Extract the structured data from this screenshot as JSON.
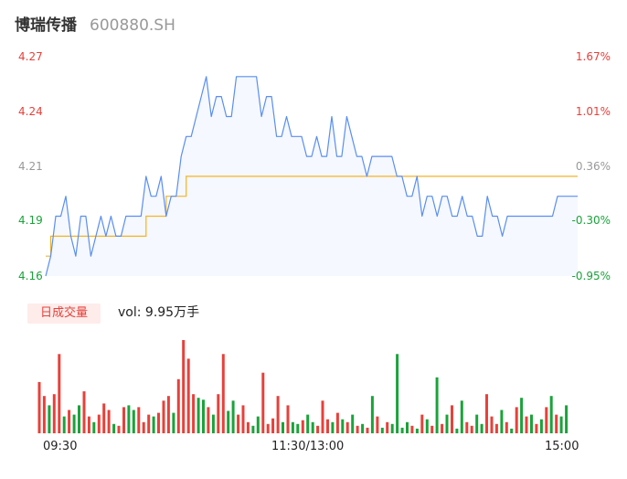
{
  "header": {
    "name": "博瑞传播",
    "code": "600880.SH"
  },
  "colors": {
    "price_line": "#5a8ef2",
    "avg_line": "#f5b325",
    "up": "#e8403a",
    "down": "#1aa33a",
    "neutral": "#999999",
    "area_fill": "#f5f8ff"
  },
  "volume_label": {
    "badge": "日成交量",
    "text": "vol: 9.95万手"
  },
  "chart_data": [
    {
      "type": "line",
      "title": "",
      "ylim": [
        4.16,
        4.27
      ],
      "y_ticks": [
        "4.27",
        "4.24",
        "4.21",
        "4.19",
        "4.16"
      ],
      "y2_ticks": [
        "1.67%",
        "1.01%",
        "0.36%",
        "-0.30%",
        "-0.95%"
      ],
      "x_ticks": [
        "09:30",
        "11:30/13:00",
        "15:00"
      ],
      "series": [
        {
          "key": "price",
          "values": [
            4.16,
            4.17,
            4.19,
            4.19,
            4.2,
            4.18,
            4.17,
            4.19,
            4.19,
            4.17,
            4.18,
            4.19,
            4.18,
            4.19,
            4.18,
            4.18,
            4.19,
            4.19,
            4.19,
            4.19,
            4.21,
            4.2,
            4.2,
            4.21,
            4.19,
            4.2,
            4.2,
            4.22,
            4.23,
            4.23,
            4.24,
            4.25,
            4.26,
            4.24,
            4.25,
            4.25,
            4.24,
            4.24,
            4.26,
            4.26,
            4.26,
            4.26,
            4.26,
            4.24,
            4.25,
            4.25,
            4.23,
            4.23,
            4.24,
            4.23,
            4.23,
            4.23,
            4.22,
            4.22,
            4.23,
            4.22,
            4.22,
            4.24,
            4.22,
            4.22,
            4.24,
            4.23,
            4.22,
            4.22,
            4.21,
            4.22,
            4.22,
            4.22,
            4.22,
            4.22,
            4.21,
            4.21,
            4.2,
            4.2,
            4.21,
            4.19,
            4.2,
            4.2,
            4.19,
            4.2,
            4.2,
            4.19,
            4.19,
            4.2,
            4.19,
            4.19,
            4.18,
            4.18,
            4.2,
            4.19,
            4.19,
            4.18,
            4.19,
            4.19,
            4.19,
            4.19,
            4.19,
            4.19,
            4.19,
            4.19,
            4.19,
            4.19,
            4.2,
            4.2,
            4.2,
            4.2,
            4.2
          ]
        },
        {
          "key": "average",
          "values": [
            4.17,
            4.18,
            4.18,
            4.18,
            4.18,
            4.18,
            4.18,
            4.18,
            4.18,
            4.18,
            4.18,
            4.18,
            4.18,
            4.18,
            4.18,
            4.18,
            4.18,
            4.18,
            4.18,
            4.18,
            4.19,
            4.19,
            4.19,
            4.19,
            4.2,
            4.2,
            4.2,
            4.2,
            4.21,
            4.21,
            4.21,
            4.21,
            4.21,
            4.21,
            4.21,
            4.21,
            4.21,
            4.21,
            4.21,
            4.21,
            4.21,
            4.21,
            4.21,
            4.21,
            4.21,
            4.21,
            4.21,
            4.21,
            4.21,
            4.21,
            4.21,
            4.21,
            4.21,
            4.21,
            4.21,
            4.21,
            4.21,
            4.21,
            4.21,
            4.21,
            4.21,
            4.21,
            4.21,
            4.21,
            4.21,
            4.21,
            4.21,
            4.21,
            4.21,
            4.21,
            4.21,
            4.21,
            4.21,
            4.21,
            4.21,
            4.21,
            4.21,
            4.21,
            4.21,
            4.21,
            4.21,
            4.21,
            4.21,
            4.21,
            4.21,
            4.21,
            4.21,
            4.21,
            4.21,
            4.21,
            4.21,
            4.21,
            4.21,
            4.21,
            4.21,
            4.21,
            4.21,
            4.21,
            4.21,
            4.21,
            4.21,
            4.21,
            4.21,
            4.21,
            4.21,
            4.21,
            4.21
          ]
        }
      ]
    },
    {
      "type": "bar",
      "title": "",
      "ylim": [
        0,
        100
      ],
      "series": [
        {
          "key": "volume",
          "values": [
            55,
            40,
            30,
            42,
            85,
            18,
            25,
            20,
            30,
            45,
            18,
            12,
            20,
            32,
            25,
            10,
            8,
            28,
            30,
            25,
            28,
            12,
            20,
            18,
            22,
            35,
            40,
            22,
            58,
            100,
            80,
            42,
            38,
            36,
            28,
            20,
            42,
            85,
            24,
            35,
            20,
            30,
            12,
            8,
            18,
            65,
            10,
            16,
            40,
            12,
            30,
            12,
            10,
            14,
            20,
            12,
            8,
            35,
            15,
            12,
            22,
            15,
            12,
            20,
            8,
            10,
            6,
            40,
            18,
            6,
            12,
            10,
            85,
            6,
            12,
            8,
            5,
            20,
            15,
            8,
            60,
            10,
            20,
            30,
            5,
            35,
            12,
            8,
            20,
            10,
            42,
            18,
            10,
            25,
            12,
            5,
            28,
            38,
            18,
            20,
            10,
            15,
            28,
            40,
            20,
            18,
            30
          ],
          "directions": [
            "u",
            "u",
            "d",
            "u",
            "u",
            "d",
            "u",
            "d",
            "d",
            "u",
            "u",
            "d",
            "u",
            "u",
            "u",
            "d",
            "u",
            "u",
            "d",
            "d",
            "u",
            "u",
            "u",
            "d",
            "u",
            "u",
            "u",
            "d",
            "u",
            "u",
            "u",
            "u",
            "d",
            "d",
            "u",
            "d",
            "u",
            "u",
            "d",
            "d",
            "u",
            "u",
            "u",
            "d",
            "d",
            "u",
            "u",
            "u",
            "u",
            "d",
            "u",
            "d",
            "d",
            "u",
            "d",
            "d",
            "u",
            "u",
            "u",
            "d",
            "u",
            "d",
            "u",
            "d",
            "u",
            "d",
            "u",
            "d",
            "u",
            "d",
            "u",
            "d",
            "d",
            "d",
            "d",
            "u",
            "d",
            "u",
            "d",
            "u",
            "d",
            "u",
            "d",
            "u",
            "d",
            "d",
            "u",
            "u",
            "d",
            "d",
            "u",
            "u",
            "u",
            "d",
            "u",
            "d",
            "u",
            "d",
            "u",
            "d",
            "u",
            "d",
            "u",
            "d",
            "u",
            "d",
            "d"
          ]
        }
      ]
    }
  ]
}
